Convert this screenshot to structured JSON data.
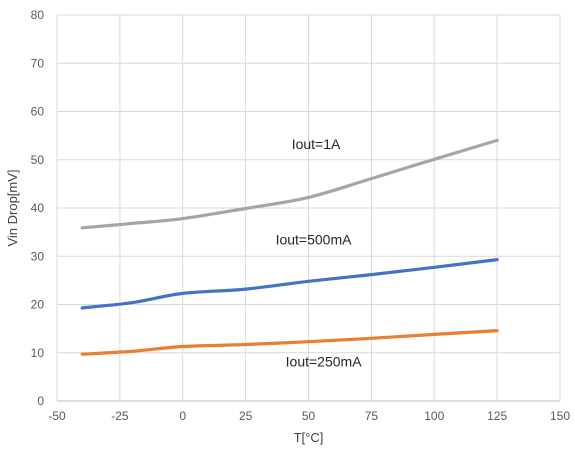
{
  "chart_data": {
    "type": "line",
    "xlabel": "T[°C]",
    "ylabel": "Vin Drop[mV]",
    "xlim": [
      -50,
      150
    ],
    "ylim": [
      0,
      80
    ],
    "x_ticks": [
      -50,
      -25,
      0,
      25,
      50,
      75,
      100,
      125,
      150
    ],
    "y_ticks": [
      0,
      10,
      20,
      30,
      40,
      50,
      60,
      70,
      80
    ],
    "grid": true,
    "series": [
      {
        "color": "#A5A5A5",
        "points": [
          [
            -40,
            35.9
          ],
          [
            -20,
            36.8
          ],
          [
            0,
            37.8
          ],
          [
            25,
            39.9
          ],
          [
            50,
            42.2
          ],
          [
            75,
            46.1
          ],
          [
            100,
            50.1
          ],
          [
            125,
            54.0
          ]
        ]
      },
      {
        "color": "#4472C4",
        "points": [
          [
            -40,
            19.3
          ],
          [
            -20,
            20.4
          ],
          [
            0,
            22.3
          ],
          [
            25,
            23.2
          ],
          [
            50,
            24.8
          ],
          [
            75,
            26.2
          ],
          [
            100,
            27.7
          ],
          [
            125,
            29.3
          ]
        ]
      },
      {
        "color": "#ED7D31",
        "points": [
          [
            -40,
            9.7
          ],
          [
            -20,
            10.3
          ],
          [
            0,
            11.3
          ],
          [
            25,
            11.7
          ],
          [
            50,
            12.3
          ],
          [
            75,
            13.0
          ],
          [
            100,
            13.8
          ],
          [
            125,
            14.6
          ]
        ]
      }
    ],
    "annotations": [
      {
        "text": "Iout=1A",
        "x": 53,
        "y": 52.2
      },
      {
        "text": "Iout=500mA",
        "x": 52,
        "y": 32.4
      },
      {
        "text": "Iout=250mA",
        "x": 56,
        "y": 7.2
      }
    ]
  }
}
